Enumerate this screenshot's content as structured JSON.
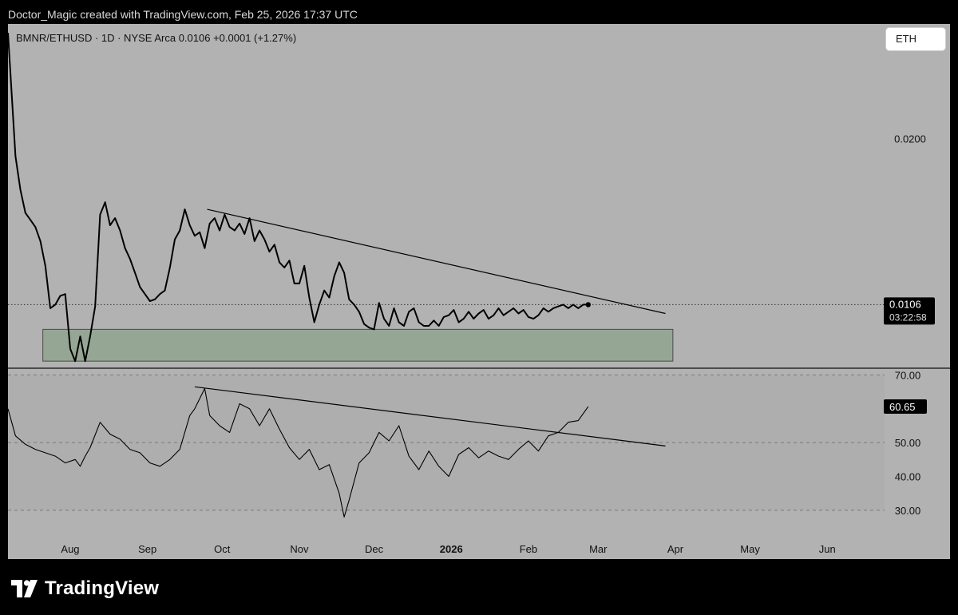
{
  "header": {
    "attribution": "Doctor_Magic created with TradingView.com, Feb 25, 2026 17:37 UTC"
  },
  "symbol_chip": {
    "label": "ETH"
  },
  "brand": {
    "name": "TradingView"
  },
  "colors": {
    "panel_bg": "#b2b2b2",
    "rsi_band": "#aeaeae",
    "zone_fill": "#8fa38f",
    "line": "#000000",
    "label_bg": "#000000",
    "label_text": "#ffffff"
  },
  "chart_data": [
    {
      "type": "line",
      "title": "BMNR/ETHUSD · 1D · NYSE Arca  0.0106  +0.0001 (+1.27%)",
      "x_tick_labels": [
        "Aug",
        "Sep",
        "Oct",
        "Nov",
        "Dec",
        "2026",
        "Feb",
        "Mar",
        "Apr",
        "May",
        "Jun"
      ],
      "x_ticks": [
        "2025-08-01",
        "2025-09-01",
        "2025-10-01",
        "2025-11-01",
        "2025-12-01",
        "2026-01-01",
        "2026-02-01",
        "2026-03-01",
        "2026-04-01",
        "2026-05-01",
        "2026-06-01"
      ],
      "y_tick_labels": [
        "0.0200"
      ],
      "y_ticks": [
        0.02
      ],
      "ylim": [
        0.007,
        0.0265
      ],
      "x_range": [
        "2025-07-07",
        "2026-06-24"
      ],
      "last_price_label": "0.0106",
      "countdown_label": "03:22:58",
      "last_price": 0.0106,
      "series": [
        {
          "x": [
            "2025-07-07",
            "2025-07-10",
            "2025-07-12",
            "2025-07-14",
            "2025-07-16",
            "2025-07-18",
            "2025-07-20",
            "2025-07-22",
            "2025-07-24",
            "2025-07-26",
            "2025-07-28",
            "2025-07-30",
            "2025-08-01",
            "2025-08-03",
            "2025-08-05",
            "2025-08-07",
            "2025-08-09",
            "2025-08-11",
            "2025-08-13",
            "2025-08-15",
            "2025-08-17",
            "2025-08-19",
            "2025-08-21",
            "2025-08-23",
            "2025-08-25",
            "2025-08-27",
            "2025-08-29",
            "2025-08-31",
            "2025-09-02",
            "2025-09-04",
            "2025-09-06",
            "2025-09-08",
            "2025-09-10",
            "2025-09-12",
            "2025-09-14",
            "2025-09-16",
            "2025-09-18",
            "2025-09-20",
            "2025-09-22",
            "2025-09-24",
            "2025-09-26",
            "2025-09-28",
            "2025-09-30",
            "2025-10-02",
            "2025-10-04",
            "2025-10-06",
            "2025-10-08",
            "2025-10-10",
            "2025-10-12",
            "2025-10-14",
            "2025-10-16",
            "2025-10-18",
            "2025-10-20",
            "2025-10-22",
            "2025-10-24",
            "2025-10-26",
            "2025-10-28",
            "2025-10-30",
            "2025-11-01",
            "2025-11-03",
            "2025-11-05",
            "2025-11-07",
            "2025-11-09",
            "2025-11-11",
            "2025-11-13",
            "2025-11-15",
            "2025-11-17",
            "2025-11-19",
            "2025-11-21",
            "2025-11-23",
            "2025-11-25",
            "2025-11-27",
            "2025-11-29",
            "2025-12-01",
            "2025-12-03",
            "2025-12-05",
            "2025-12-07",
            "2025-12-09",
            "2025-12-11",
            "2025-12-13",
            "2025-12-15",
            "2025-12-17",
            "2025-12-19",
            "2025-12-21",
            "2025-12-23",
            "2025-12-25",
            "2025-12-27",
            "2025-12-29",
            "2025-12-31",
            "2026-01-02",
            "2026-01-04",
            "2026-01-06",
            "2026-01-08",
            "2026-01-10",
            "2026-01-12",
            "2026-01-14",
            "2026-01-16",
            "2026-01-18",
            "2026-01-20",
            "2026-01-22",
            "2026-01-24",
            "2026-01-26",
            "2026-01-28",
            "2026-01-30",
            "2026-02-01",
            "2026-02-03",
            "2026-02-05",
            "2026-02-07",
            "2026-02-09",
            "2026-02-11",
            "2026-02-13",
            "2026-02-15",
            "2026-02-17",
            "2026-02-19",
            "2026-02-21",
            "2026-02-23",
            "2026-02-25"
          ],
          "y": [
            0.026,
            0.019,
            0.0171,
            0.0158,
            0.0154,
            0.015,
            0.0142,
            0.0128,
            0.0104,
            0.0106,
            0.0111,
            0.0112,
            0.0081,
            0.0074,
            0.0088,
            0.0074,
            0.0088,
            0.0105,
            0.0157,
            0.0164,
            0.0151,
            0.0155,
            0.0148,
            0.0138,
            0.0132,
            0.0124,
            0.0116,
            0.0112,
            0.0108,
            0.0109,
            0.0112,
            0.0114,
            0.0127,
            0.0143,
            0.0148,
            0.016,
            0.0151,
            0.0145,
            0.0147,
            0.0138,
            0.0152,
            0.0155,
            0.0148,
            0.0157,
            0.015,
            0.0148,
            0.0152,
            0.0146,
            0.0155,
            0.0142,
            0.0148,
            0.0143,
            0.0136,
            0.014,
            0.013,
            0.0127,
            0.0131,
            0.0118,
            0.0118,
            0.0128,
            0.011,
            0.0096,
            0.0106,
            0.0114,
            0.011,
            0.0122,
            0.013,
            0.0124,
            0.0109,
            0.0106,
            0.0102,
            0.0095,
            0.0093,
            0.0092,
            0.0107,
            0.0098,
            0.0094,
            0.0104,
            0.0096,
            0.0094,
            0.0102,
            0.0104,
            0.0096,
            0.0094,
            0.0094,
            0.0097,
            0.0094,
            0.0099,
            0.01,
            0.0103,
            0.0096,
            0.0098,
            0.0102,
            0.0098,
            0.0101,
            0.0103,
            0.0098,
            0.01,
            0.0104,
            0.01,
            0.0102,
            0.0104,
            0.0101,
            0.0103,
            0.0099,
            0.0098,
            0.01,
            0.0104,
            0.0102,
            0.0104,
            0.0105,
            0.0106,
            0.0104,
            0.0106,
            0.0104,
            0.0106,
            0.0106
          ]
        }
      ],
      "trendline": {
        "start": [
          "2025-09-25",
          0.016
        ],
        "end": [
          "2026-03-28",
          0.0101
        ]
      },
      "support_zone": {
        "x_start": "2025-07-21",
        "x_end": "2026-03-31",
        "y_low": 0.0074,
        "y_high": 0.0092
      }
    },
    {
      "type": "line",
      "y_tick_labels": [
        "70.00",
        "50.00",
        "40.00",
        "30.00"
      ],
      "y_ticks": [
        70,
        50,
        40,
        30
      ],
      "band": [
        30,
        70
      ],
      "ylim": [
        25,
        72
      ],
      "last_value_label": "60.65",
      "last_value": 60.65,
      "series": [
        {
          "x": [
            "2025-07-07",
            "2025-07-10",
            "2025-07-14",
            "2025-07-18",
            "2025-07-22",
            "2025-07-26",
            "2025-07-30",
            "2025-08-03",
            "2025-08-05",
            "2025-08-07",
            "2025-08-09",
            "2025-08-13",
            "2025-08-17",
            "2025-08-21",
            "2025-08-25",
            "2025-08-29",
            "2025-09-02",
            "2025-09-06",
            "2025-09-10",
            "2025-09-14",
            "2025-09-18",
            "2025-09-20",
            "2025-09-24",
            "2025-09-26",
            "2025-09-30",
            "2025-10-04",
            "2025-10-08",
            "2025-10-12",
            "2025-10-16",
            "2025-10-20",
            "2025-10-24",
            "2025-10-28",
            "2025-11-01",
            "2025-11-05",
            "2025-11-09",
            "2025-11-13",
            "2025-11-17",
            "2025-11-19",
            "2025-11-21",
            "2025-11-25",
            "2025-11-29",
            "2025-12-03",
            "2025-12-07",
            "2025-12-11",
            "2025-12-15",
            "2025-12-19",
            "2025-12-23",
            "2025-12-27",
            "2025-12-31",
            "2026-01-04",
            "2026-01-08",
            "2026-01-12",
            "2026-01-16",
            "2026-01-20",
            "2026-01-24",
            "2026-01-28",
            "2026-02-01",
            "2026-02-05",
            "2026-02-09",
            "2026-02-13",
            "2026-02-17",
            "2026-02-21",
            "2026-02-25"
          ],
          "y": [
            60.0,
            52.0,
            49.5,
            48.0,
            47.0,
            46.0,
            44.0,
            45.0,
            43.0,
            46.0,
            48.5,
            56.0,
            52.5,
            51.0,
            48.0,
            47.0,
            44.0,
            43.0,
            45.0,
            48.0,
            58.0,
            60.0,
            66.0,
            58.0,
            55.0,
            53.0,
            61.5,
            60.0,
            55.0,
            60.0,
            54.0,
            48.5,
            45.0,
            48.0,
            42.0,
            43.5,
            35.0,
            28.0,
            33.0,
            44.0,
            47.0,
            53.0,
            50.5,
            55.0,
            46.0,
            42.0,
            47.5,
            43.0,
            40.0,
            46.5,
            48.5,
            45.5,
            47.5,
            46.0,
            45.0,
            48.0,
            50.5,
            47.5,
            52.0,
            53.0,
            56.0,
            56.5,
            60.65
          ]
        }
      ],
      "trendline": {
        "start": [
          "2025-09-20",
          66.5
        ],
        "end": [
          "2026-03-28",
          49.0
        ]
      }
    }
  ]
}
